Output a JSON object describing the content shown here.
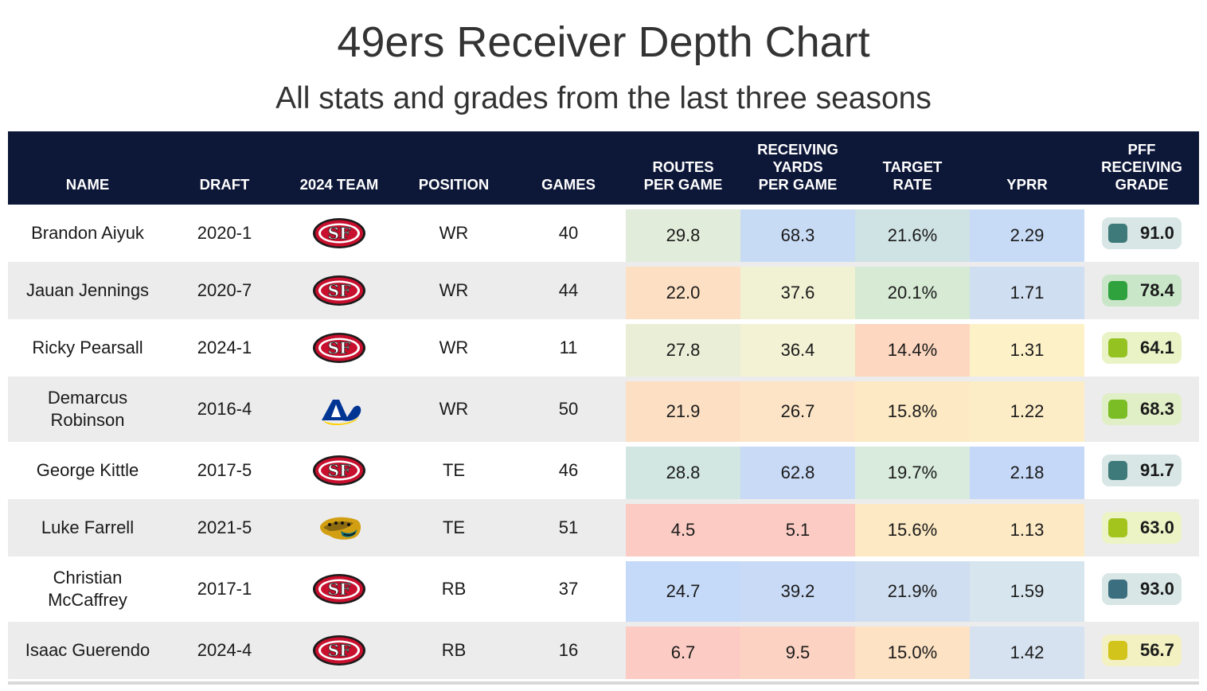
{
  "title": "49ers Receiver Depth Chart",
  "subtitle": "All stats and grades from the last three seasons",
  "headers": {
    "name": "NAME",
    "draft": "DRAFT",
    "team": "2024 TEAM",
    "position": "POSITION",
    "games": "GAMES",
    "routes": "ROUTES\nPER GAME",
    "rec_yards": "RECEIVING\nYARDS\nPER GAME",
    "target_rate": "TARGET\nRATE",
    "yprr": "YPRR",
    "grade": "PFF\nRECEIVING\nGRADE"
  },
  "team_logos": {
    "SF": "49ers-logo-icon",
    "LAR": "rams-logo-icon",
    "JAX": "jaguars-logo-icon"
  },
  "rows": [
    {
      "name": "Brandon Aiyuk",
      "draft": "2020-1",
      "team": "SF",
      "position": "WR",
      "games": "40",
      "routes": "29.8",
      "routes_color": "#e2ecda",
      "rec_yards": "68.3",
      "rec_yards_color": "#c8dbf4",
      "target_rate": "21.6%",
      "target_rate_color": "#cfe2e4",
      "yprr": "2.29",
      "yprr_color": "#c8dbf6",
      "grade": "91.0",
      "grade_bg": "#d8e6e6",
      "grade_dot": "#3f7a7a"
    },
    {
      "name": "Jauan Jennings",
      "draft": "2020-7",
      "team": "SF",
      "position": "WR",
      "games": "44",
      "routes": "22.0",
      "routes_color": "#fde0c4",
      "rec_yards": "37.6",
      "rec_yards_color": "#f1f1d4",
      "target_rate": "20.1%",
      "target_rate_color": "#d6ead4",
      "yprr": "1.71",
      "yprr_color": "#cfdef0",
      "grade": "78.4",
      "grade_bg": "#c9e6c8",
      "grade_dot": "#2fa23e"
    },
    {
      "name": "Ricky Pearsall",
      "draft": "2024-1",
      "team": "SF",
      "position": "WR",
      "games": "11",
      "routes": "27.8",
      "routes_color": "#ebeed6",
      "rec_yards": "36.4",
      "rec_yards_color": "#f3f2d4",
      "target_rate": "14.4%",
      "target_rate_color": "#fdd7c0",
      "yprr": "1.31",
      "yprr_color": "#fdf1c8",
      "grade": "64.1",
      "grade_bg": "#e9f3c6",
      "grade_dot": "#93c221"
    },
    {
      "name": "Demarcus\nRobinson",
      "draft": "2016-4",
      "team": "LAR",
      "position": "WR",
      "games": "50",
      "routes": "21.9",
      "routes_color": "#fde0c4",
      "rec_yards": "26.7",
      "rec_yards_color": "#fde4c6",
      "target_rate": "15.8%",
      "target_rate_color": "#fde9c4",
      "yprr": "1.22",
      "yprr_color": "#fdedc6",
      "grade": "68.3",
      "grade_bg": "#e1efc6",
      "grade_dot": "#7bbd24"
    },
    {
      "name": "George Kittle",
      "draft": "2017-5",
      "team": "SF",
      "position": "TE",
      "games": "46",
      "routes": "28.8",
      "routes_color": "#d2e6e2",
      "rec_yards": "62.8",
      "rec_yards_color": "#c8daf6",
      "target_rate": "19.7%",
      "target_rate_color": "#d9ebdc",
      "yprr": "2.18",
      "yprr_color": "#c5d8f8",
      "grade": "91.7",
      "grade_bg": "#d8e6e6",
      "grade_dot": "#3f7a7a"
    },
    {
      "name": "Luke Farrell",
      "draft": "2021-5",
      "team": "JAX",
      "position": "TE",
      "games": "51",
      "routes": "4.5",
      "routes_color": "#fcccc4",
      "rec_yards": "5.1",
      "rec_yards_color": "#fcccc4",
      "target_rate": "15.6%",
      "target_rate_color": "#fde9c4",
      "yprr": "1.13",
      "yprr_color": "#fde9c4",
      "grade": "63.0",
      "grade_bg": "#ecf3c4",
      "grade_dot": "#a2c41d"
    },
    {
      "name": "Christian\nMcCaffrey",
      "draft": "2017-1",
      "team": "SF",
      "position": "RB",
      "games": "37",
      "routes": "24.7",
      "routes_color": "#c5d9f8",
      "rec_yards": "39.2",
      "rec_yards_color": "#c8daf6",
      "target_rate": "21.9%",
      "target_rate_color": "#cfdef0",
      "yprr": "1.59",
      "yprr_color": "#d6e5ee",
      "grade": "93.0",
      "grade_bg": "#d8e6e6",
      "grade_dot": "#3b6f80"
    },
    {
      "name": "Isaac Guerendo",
      "draft": "2024-4",
      "team": "SF",
      "position": "RB",
      "games": "16",
      "routes": "6.7",
      "routes_color": "#fcccc4",
      "rec_yards": "9.5",
      "rec_yards_color": "#fcd3c2",
      "target_rate": "15.0%",
      "target_rate_color": "#fde2c4",
      "yprr": "1.42",
      "yprr_color": "#d6e2f0",
      "grade": "56.7",
      "grade_bg": "#f3f0c2",
      "grade_dot": "#d2c41a"
    }
  ]
}
